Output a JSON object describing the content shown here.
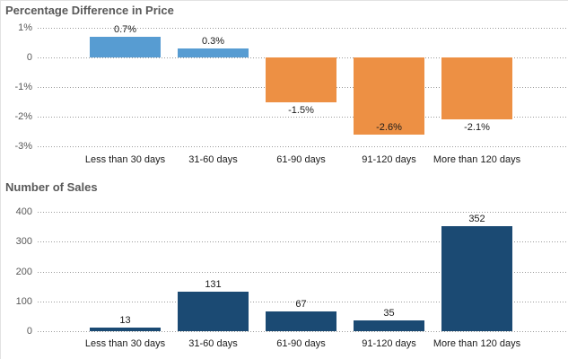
{
  "page": {
    "background": "#ffffff",
    "edge_border_color": "#e2e2e2",
    "gridline_color": "#9b9b9b",
    "title_color": "#595959",
    "axis_label_color": "#595959",
    "data_label_color": "#1a1a1a"
  },
  "chart_data": [
    {
      "type": "bar",
      "title": "Percentage Difference in Price",
      "categories": [
        "Less than 30 days",
        "31-60 days",
        "61-90 days",
        "91-120 days",
        "More than 120 days"
      ],
      "values": [
        0.7,
        0.3,
        -1.5,
        -2.6,
        -2.1
      ],
      "value_labels": [
        "0.7%",
        "0.3%",
        "-1.5%",
        "-2.6%",
        "-2.1%"
      ],
      "bar_colors": [
        "#579CD2",
        "#579CD2",
        "#ED9044",
        "#ED9044",
        "#ED9044"
      ],
      "positive_color": "#579CD2",
      "negative_color": "#ED9044",
      "ylim": [
        -3,
        1
      ],
      "yticks": [
        {
          "value": 1,
          "label": "1%"
        },
        {
          "value": 0,
          "label": "0"
        },
        {
          "value": -1,
          "label": "-1%"
        },
        {
          "value": -2,
          "label": "-2%"
        },
        {
          "value": -3,
          "label": "-3%"
        }
      ],
      "grid": "horizontal-dotted",
      "legend": "none",
      "label_positions": [
        "above",
        "above",
        "below",
        "inside",
        "below"
      ]
    },
    {
      "type": "bar",
      "title": "Number of Sales",
      "categories": [
        "Less than 30 days",
        "31-60 days",
        "61-90 days",
        "91-120 days",
        "More than 120 days"
      ],
      "values": [
        13,
        131,
        67,
        35,
        352
      ],
      "value_labels": [
        "13",
        "131",
        "67",
        "35",
        "352"
      ],
      "bar_colors": [
        "#1B4A73",
        "#1B4A73",
        "#1B4A73",
        "#1B4A73",
        "#1B4A73"
      ],
      "ylim": [
        0,
        400
      ],
      "yticks": [
        {
          "value": 400,
          "label": "400"
        },
        {
          "value": 300,
          "label": "300"
        },
        {
          "value": 200,
          "label": "200"
        },
        {
          "value": 100,
          "label": "100"
        },
        {
          "value": 0,
          "label": "0"
        }
      ],
      "grid": "horizontal-dotted",
      "legend": "none",
      "label_positions": [
        "above",
        "above",
        "above",
        "above",
        "above"
      ]
    }
  ]
}
